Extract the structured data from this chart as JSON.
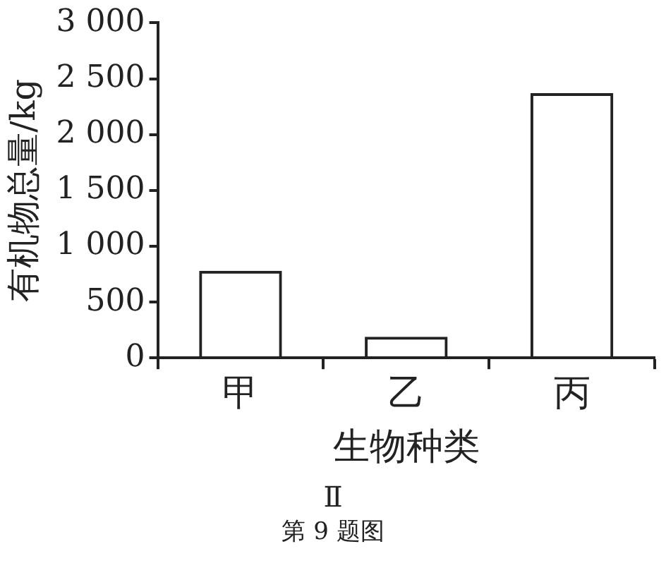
{
  "chart_data": {
    "type": "bar",
    "xlabel": "生物种类",
    "ylabel": "有机物总量/kg",
    "categories": [
      "甲",
      "乙",
      "丙"
    ],
    "values": [
      780,
      190,
      2370
    ],
    "color": "#222222",
    "ylim": [
      0,
      3000
    ],
    "yticks": [
      0,
      500,
      {
        "value": 1000,
        "label": "1 000"
      },
      {
        "value": 1500,
        "label": "1 500"
      },
      {
        "value": 2000,
        "label": "2 000"
      },
      {
        "value": 2500,
        "label": "2 500"
      },
      {
        "value": 3000,
        "label": "3 000"
      }
    ],
    "grid": false,
    "legend": false,
    "annotations": [
      "Ⅱ",
      "第 9 题图"
    ]
  }
}
